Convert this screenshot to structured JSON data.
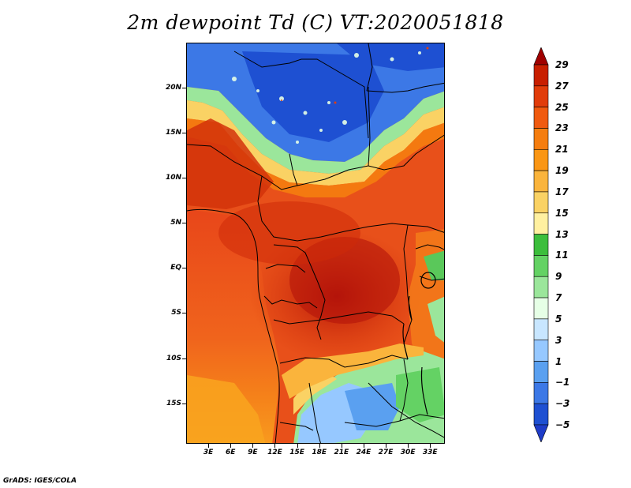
{
  "title": "2m dewpoint Td (C) VT:2020051818",
  "credit": "GrADS: IGES/COLA",
  "map": {
    "region": "Central Africa",
    "lat_range": [
      -19.5,
      25
    ],
    "lon_range": [
      0,
      35
    ],
    "lat_ticks": [
      "20N",
      "15N",
      "10N",
      "5N",
      "EQ",
      "5S",
      "10S",
      "15S"
    ],
    "lat_tick_values": [
      20,
      15,
      10,
      5,
      0,
      -5,
      -10,
      -15
    ],
    "lon_ticks": [
      "3E",
      "6E",
      "9E",
      "12E",
      "15E",
      "18E",
      "21E",
      "24E",
      "27E",
      "30E",
      "33E"
    ],
    "lon_tick_values": [
      3,
      6,
      9,
      12,
      15,
      18,
      21,
      24,
      27,
      30,
      33
    ]
  },
  "colorbar": {
    "labels": [
      "29",
      "27",
      "25",
      "23",
      "21",
      "19",
      "17",
      "15",
      "13",
      "11",
      "9",
      "7",
      "5",
      "3",
      "1",
      "−1",
      "−3",
      "−5"
    ],
    "colors": [
      "#a00000",
      "#c81e00",
      "#e13c0a",
      "#f05a0f",
      "#f57d0f",
      "#fa9614",
      "#fab43c",
      "#fad264",
      "#fff0a0",
      "#3cbe3c",
      "#64d264",
      "#9be69b",
      "#e6ffe6",
      "#c8e6ff",
      "#96c8ff",
      "#5aa0f0",
      "#3c78e6",
      "#1e50d2",
      "#1e3cc8"
    ]
  }
}
